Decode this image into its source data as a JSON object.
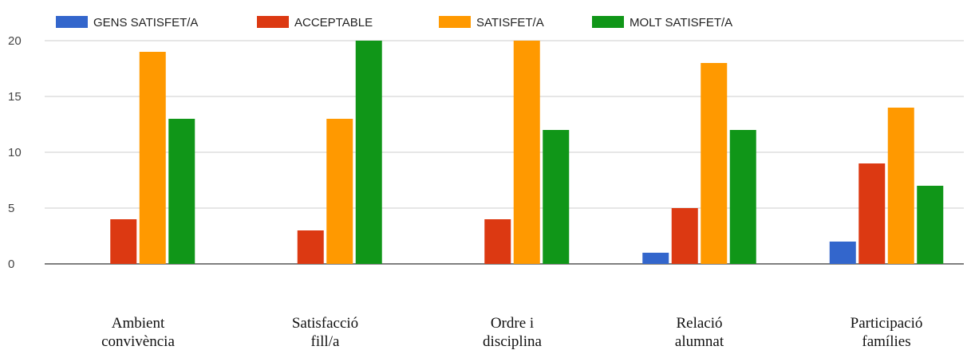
{
  "chart_data": {
    "type": "bar",
    "categories": [
      [
        "Ambient",
        "convivència"
      ],
      [
        "Satisfacció",
        "fill/a"
      ],
      [
        "Ordre i",
        "disciplina"
      ],
      [
        "Relació",
        "alumnat"
      ],
      [
        "Participació",
        "famílies"
      ]
    ],
    "series": [
      {
        "name": "GENS SATISFET/A",
        "color": "#3366cc",
        "values": [
          0,
          0,
          0,
          1,
          2
        ]
      },
      {
        "name": "ACCEPTABLE",
        "color": "#dc3912",
        "values": [
          4,
          3,
          4,
          5,
          9
        ]
      },
      {
        "name": "SATISFET/A",
        "color": "#ff9900",
        "values": [
          19,
          13,
          20,
          18,
          14
        ]
      },
      {
        "name": "MOLT SATISFET/A",
        "color": "#109618",
        "values": [
          13,
          20,
          12,
          12,
          7
        ]
      }
    ],
    "yticks": [
      0,
      5,
      10,
      15,
      20
    ],
    "ylim": [
      0,
      20
    ],
    "grid": true,
    "legend_position": "top"
  }
}
